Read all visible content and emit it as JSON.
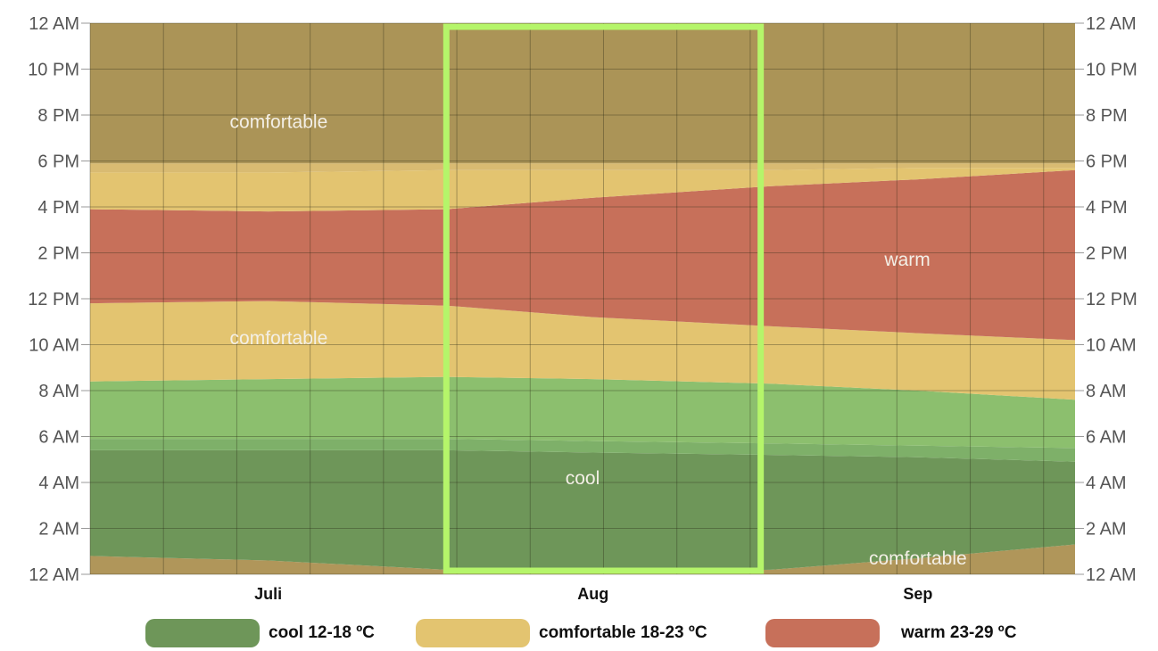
{
  "chart_data": {
    "type": "area",
    "title": "",
    "xlabel": "",
    "ylabel": "",
    "x_range": [
      "Jun 28",
      "Sep 30"
    ],
    "x_months": [
      {
        "label": "Juli",
        "date": "Jul 15"
      },
      {
        "label": "Aug",
        "date": "Aug 15"
      },
      {
        "label": "Sep",
        "date": "Sep 15"
      }
    ],
    "y_axis": {
      "unit": "hour of day",
      "range": [
        0,
        24
      ],
      "ticks": [
        {
          "value": 0,
          "label": "12 AM"
        },
        {
          "value": 2,
          "label": "2 AM"
        },
        {
          "value": 4,
          "label": "4 AM"
        },
        {
          "value": 6,
          "label": "6 AM"
        },
        {
          "value": 8,
          "label": "8 AM"
        },
        {
          "value": 10,
          "label": "10 AM"
        },
        {
          "value": 12,
          "label": "12 PM"
        },
        {
          "value": 14,
          "label": "2 PM"
        },
        {
          "value": 16,
          "label": "4 PM"
        },
        {
          "value": 18,
          "label": "6 PM"
        },
        {
          "value": 20,
          "label": "8 PM"
        },
        {
          "value": 22,
          "label": "10 PM"
        },
        {
          "value": 24,
          "label": "12 AM"
        }
      ]
    },
    "grid": true,
    "dates": [
      "Jun 28",
      "Jul 15",
      "Aug 1",
      "Aug 15",
      "Sep 1",
      "Sep 15",
      "Sep 30"
    ],
    "boundaries_hours": [
      [
        0.8,
        5.4,
        5.9,
        8.4,
        11.8,
        15.9,
        17.5,
        17.9
      ],
      [
        0.6,
        5.4,
        5.9,
        8.5,
        11.9,
        15.8,
        17.5,
        17.9
      ],
      [
        0.2,
        5.4,
        5.9,
        8.6,
        11.7,
        15.9,
        17.6,
        17.9
      ],
      [
        0.1,
        5.3,
        5.8,
        8.5,
        11.2,
        16.4,
        17.6,
        17.9
      ],
      [
        0.2,
        5.2,
        5.7,
        8.3,
        10.8,
        16.9,
        17.6,
        17.9
      ],
      [
        0.7,
        5.1,
        5.6,
        8.0,
        10.5,
        17.2,
        17.7,
        17.9
      ],
      [
        1.3,
        4.9,
        5.5,
        7.6,
        10.2,
        17.6,
        17.7,
        17.9
      ]
    ],
    "bands": [
      {
        "category": "comfortable",
        "color": "#b0965a"
      },
      {
        "category": "cool",
        "color": "#6e9659"
      },
      {
        "category": "cool",
        "color": "#7eb069"
      },
      {
        "category": "cool",
        "color": "#8cbf6e"
      },
      {
        "category": "comfortable",
        "color": "#e3c470"
      },
      {
        "category": "warm",
        "color": "#c7705a"
      },
      {
        "category": "comfortable",
        "color": "#e3c470"
      },
      {
        "category": "comfortable",
        "color": "#d9bb72"
      },
      {
        "category": "comfortable",
        "color": "#ab9457"
      }
    ],
    "band_labels": [
      {
        "text": "comfortable",
        "date": "Jul 16",
        "hour": 19.7
      },
      {
        "text": "comfortable",
        "date": "Jul 16",
        "hour": 10.3
      },
      {
        "text": "warm",
        "date": "Sep 14",
        "hour": 13.7
      },
      {
        "text": "cool",
        "date": "Aug 14",
        "hour": 4.2
      },
      {
        "text": "comfortable",
        "date": "Sep 15",
        "hour": 0.7
      }
    ],
    "highlight": {
      "start": "Aug 1",
      "end": "Aug 31",
      "color": "#b5f56a"
    },
    "legend": [
      {
        "label": "cool 12-18 ºC",
        "color": "#6e9659"
      },
      {
        "label": "comfortable 18-23 ºC",
        "color": "#e3c470"
      },
      {
        "label": "warm 23-29 ºC",
        "color": "#c7705a"
      }
    ],
    "legend_position": "bottom"
  }
}
